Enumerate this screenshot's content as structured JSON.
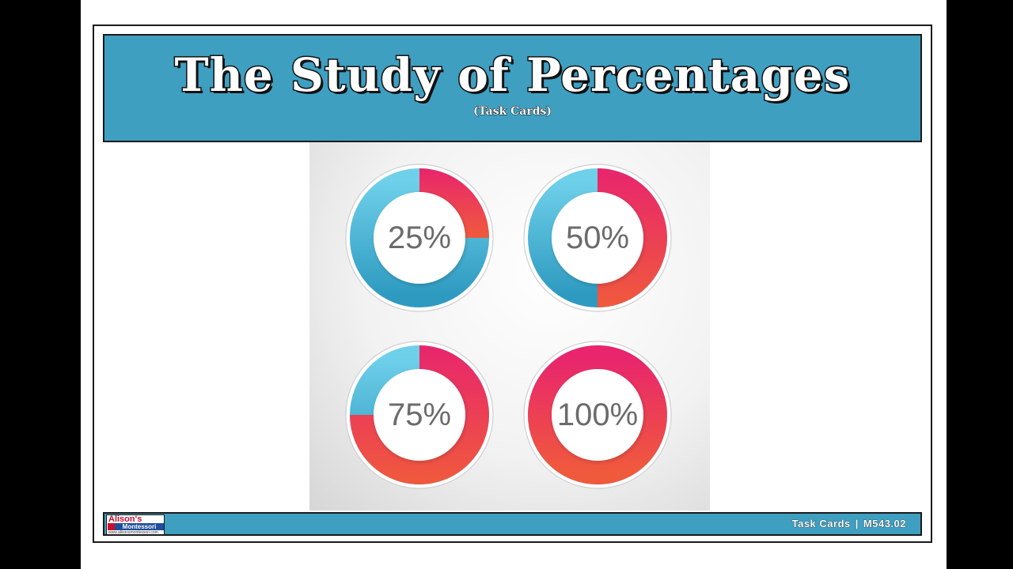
{
  "header": {
    "title": "The Study of Percentages",
    "subtitle": "(Task Cards)"
  },
  "donuts": [
    {
      "label": "25%",
      "value": 25
    },
    {
      "label": "50%",
      "value": 50
    },
    {
      "label": "75%",
      "value": 75
    },
    {
      "label": "100%",
      "value": 100
    }
  ],
  "footer": {
    "logo_name": "Alison's",
    "logo_sub": "Montessori",
    "logo_url": "www.alisonsmontessori.com",
    "product_type": "Task Cards",
    "separator": "|",
    "product_code": "M543.02"
  },
  "colors": {
    "banner": "#3e9fc1",
    "blue_light": "#6fd0ea",
    "blue_dark": "#2e9ac0",
    "pink": "#e8256d",
    "orange": "#f05a3c",
    "label_gray": "#6b6b6b"
  }
}
